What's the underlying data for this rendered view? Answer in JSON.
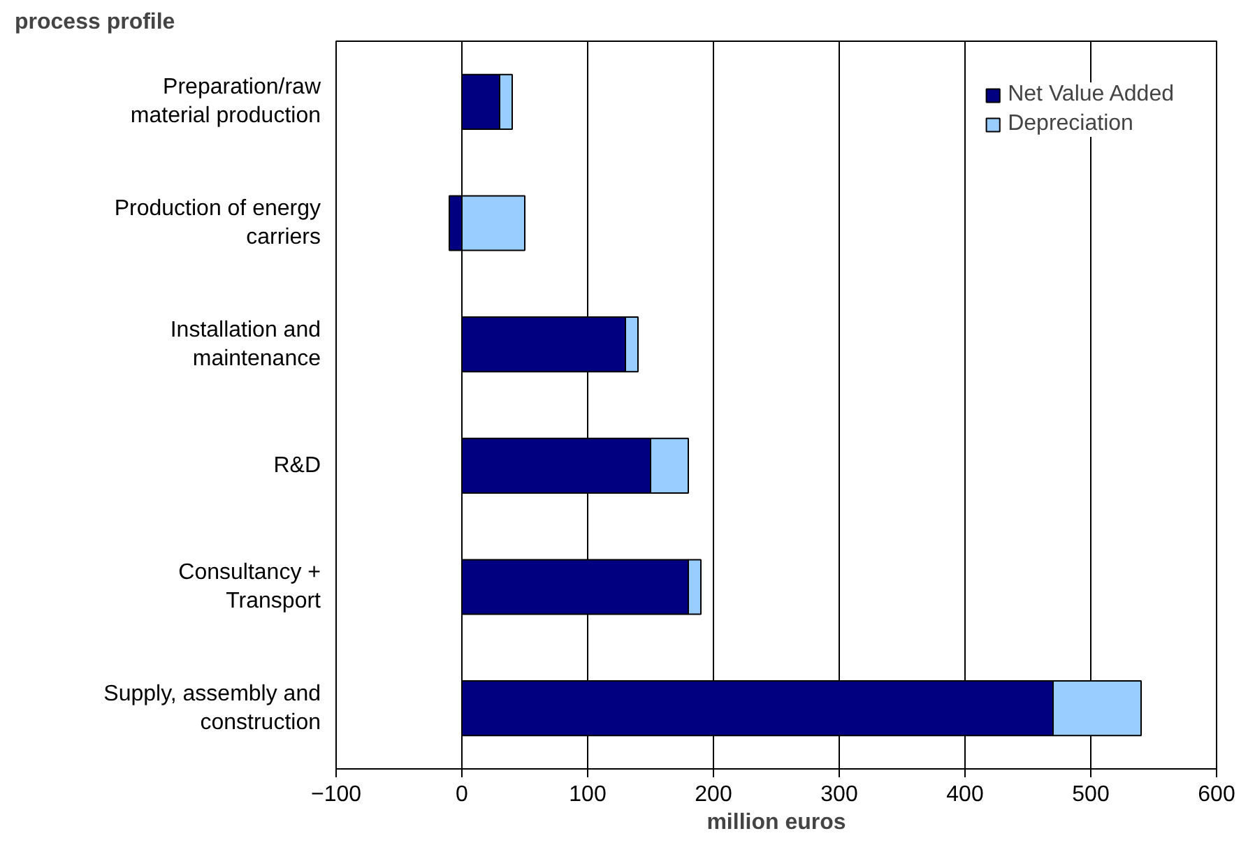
{
  "chart_data": {
    "type": "bar",
    "orientation": "horizontal",
    "stacked": true,
    "title": "process profile",
    "xlabel": "million euros",
    "categories": [
      "Preparation/raw material production",
      "Production of energy carriers",
      "Installation and maintenance",
      "R&D",
      "Consultancy + Transport",
      "Supply, assembly and construction"
    ],
    "series": [
      {
        "name": "Net Value Added",
        "color": "#000080",
        "values": [
          30,
          -10,
          130,
          150,
          180,
          470
        ]
      },
      {
        "name": "Depreciation",
        "color": "#99ccff",
        "values": [
          10,
          50,
          10,
          30,
          10,
          70
        ]
      }
    ],
    "xlim": [
      -100,
      600
    ],
    "xticks": [
      -100,
      0,
      100,
      200,
      300,
      400,
      500,
      600
    ],
    "grid": "x",
    "legend": "top right"
  }
}
